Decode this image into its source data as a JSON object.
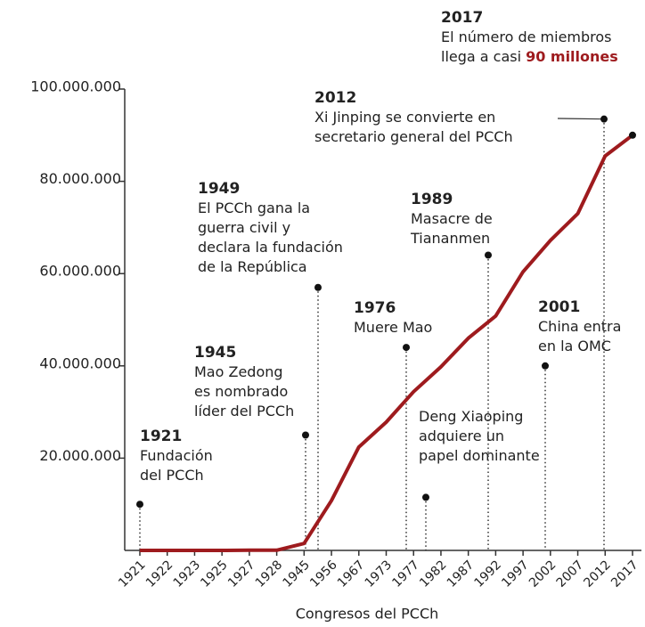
{
  "chart_data": {
    "type": "line",
    "x_label": "Congresos del PCCh",
    "categories": [
      "1921",
      "1922",
      "1923",
      "1925",
      "1927",
      "1928",
      "1945",
      "1956",
      "1967",
      "1973",
      "1977",
      "1982",
      "1987",
      "1992",
      "1997",
      "2002",
      "2007",
      "2012",
      "2017"
    ],
    "series": [
      {
        "color": "#9e1b1e",
        "values": [
          50,
          195,
          420,
          994,
          57967,
          40000,
          1500000,
          10800000,
          22400000,
          27800000,
          34400000,
          39800000,
          46000000,
          50800000,
          60400000,
          67200000,
          73000000,
          85500000,
          90000000
        ]
      }
    ],
    "ylim": [
      0,
      100000000
    ],
    "yticks": [
      {
        "value": 20000000,
        "label": "20.000.000"
      },
      {
        "value": 40000000,
        "label": "40.000.000"
      },
      {
        "value": 60000000,
        "label": "60.000.000"
      },
      {
        "value": 80000000,
        "label": "80.000.000"
      },
      {
        "value": 100000000,
        "label": "100.000.000"
      }
    ],
    "annotations": [
      {
        "year": "1921",
        "lines": [
          "Fundación",
          "del PCCh"
        ],
        "value": 10000000
      },
      {
        "year": "1945",
        "lines": [
          "Mao Zedong",
          "es nombrado",
          "líder del PCCh"
        ],
        "value": 25000000
      },
      {
        "year": "1949",
        "lines": [
          "El PCCh gana la",
          "guerra civil y",
          "declara la fundación",
          "de la República"
        ],
        "value": 57000000
      },
      {
        "year": "1976",
        "lines": [
          "Muere Mao"
        ],
        "value": 44000000
      },
      {
        "lines": [
          "Deng Xiaoping",
          "adquiere un",
          "papel dominante"
        ],
        "value": 11500000
      },
      {
        "year": "1989",
        "lines": [
          "Masacre de",
          "Tiananmen"
        ],
        "value": 64000000
      },
      {
        "year": "2001",
        "lines": [
          "China entra",
          "en la OMC"
        ],
        "value": 40000000
      },
      {
        "year": "2012",
        "lines": [
          "Xi Jinping se convierte en",
          "secretario general del PCCh"
        ],
        "value": 93500000
      },
      {
        "year": "2017",
        "lines": [
          "El número de miembros",
          "llega a casi"
        ],
        "highlight": "90 millones"
      }
    ]
  }
}
